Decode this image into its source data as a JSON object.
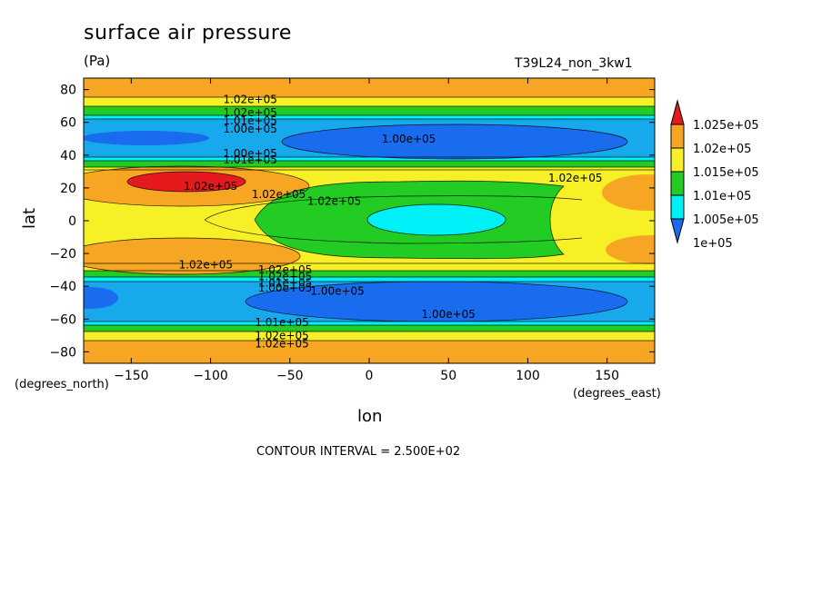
{
  "header": {
    "title": "surface air pressure",
    "units": "(Pa)",
    "run_name": "T39L24_non_3kw1"
  },
  "axes": {
    "xlabel": "lon",
    "ylabel": "lat",
    "x_unit_note": "(degrees_east)",
    "y_unit_note": "(degrees_north)"
  },
  "footer": {
    "contour_interval": "CONTOUR INTERVAL = 2.500E+02"
  },
  "colors": {
    "red": "#e6191c",
    "orange": "#f6a623",
    "yellow": "#f7f027",
    "green": "#22cc22",
    "cyan": "#00f0f8",
    "lightblue": "#18a8ec",
    "blue": "#1a6cee"
  },
  "chart_data": {
    "type": "heatmap",
    "subtype": "filled contour",
    "title": "surface air pressure",
    "xlabel": "lon",
    "ylabel": "lat",
    "xlim": [
      -180,
      180
    ],
    "ylim": [
      -87,
      87
    ],
    "x_ticks": [
      -150,
      -100,
      -50,
      0,
      50,
      100,
      150
    ],
    "y_ticks": [
      -80,
      -60,
      -40,
      -20,
      0,
      20,
      40,
      60,
      80
    ],
    "x_tick_labels": [
      "−150",
      "−100",
      "−50",
      "0",
      "50",
      "100",
      "150"
    ],
    "y_tick_labels": [
      "−80",
      "−60",
      "−40",
      "−20",
      "0",
      "20",
      "40",
      "60",
      "80"
    ],
    "color_levels": [
      {
        "label": "1e+05",
        "color": "#1a6cee"
      },
      {
        "label": "1.005e+05",
        "color": "#00f0f8"
      },
      {
        "label": "1.01e+05",
        "color": "#22cc22"
      },
      {
        "label": "1.015e+05",
        "color": "#f7f027"
      },
      {
        "label": "1.02e+05",
        "color": "#f6a623"
      },
      {
        "label": "1.025e+05",
        "color": "#e6191c"
      }
    ],
    "contour_labels": [
      {
        "text": "1.02e+05",
        "lon": -75,
        "lat": 74
      },
      {
        "text": "1.02e+05",
        "lon": -75,
        "lat": 66
      },
      {
        "text": "1.01e+05",
        "lon": -75,
        "lat": 61
      },
      {
        "text": "1.00e+05",
        "lon": -75,
        "lat": 56
      },
      {
        "text": "1.00e+05",
        "lon": 25,
        "lat": 50
      },
      {
        "text": "1.00e+05",
        "lon": -75,
        "lat": 41
      },
      {
        "text": "1.01e+05",
        "lon": -75,
        "lat": 37
      },
      {
        "text": "1.02e+05",
        "lon": -100,
        "lat": 21
      },
      {
        "text": "1.02e+05",
        "lon": -57,
        "lat": 16
      },
      {
        "text": "1.02e+05",
        "lon": -22,
        "lat": 12
      },
      {
        "text": "1.02e+05",
        "lon": 130,
        "lat": 26
      },
      {
        "text": "1.02e+05",
        "lon": -103,
        "lat": -27
      },
      {
        "text": "1.02e+05",
        "lon": -53,
        "lat": -30
      },
      {
        "text": "1.02e+05",
        "lon": -53,
        "lat": -34
      },
      {
        "text": "1.01e+05",
        "lon": -53,
        "lat": -38
      },
      {
        "text": "1.00e+05",
        "lon": -53,
        "lat": -41
      },
      {
        "text": "1.00e+05",
        "lon": -20,
        "lat": -43
      },
      {
        "text": "1.00e+05",
        "lon": 50,
        "lat": -57
      },
      {
        "text": "1.01e+05",
        "lon": -55,
        "lat": -62
      },
      {
        "text": "1.02e+05",
        "lon": -55,
        "lat": -70
      },
      {
        "text": "1.02e+05",
        "lon": -55,
        "lat": -75
      }
    ]
  }
}
